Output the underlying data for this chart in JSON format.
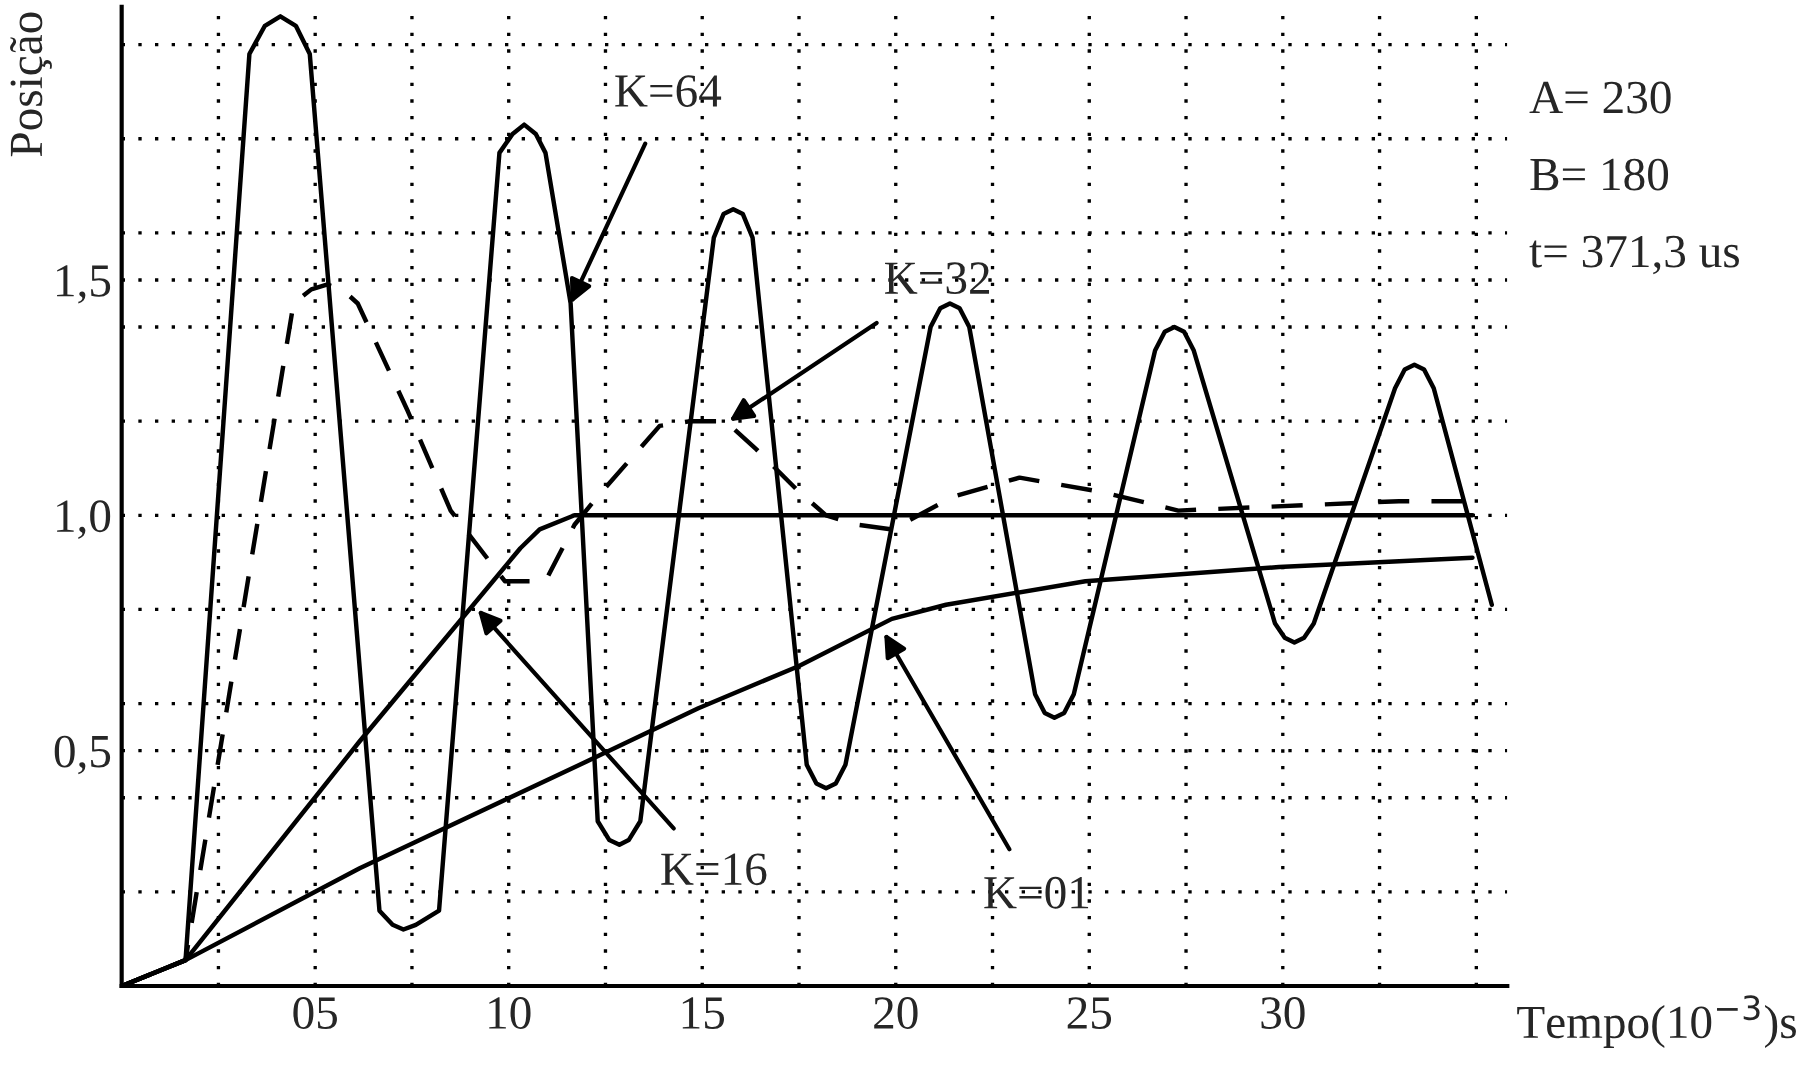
{
  "chart_data": {
    "type": "line",
    "xlabel": "Tempo(10$^{−3}$)s",
    "ylabel": "Posição",
    "xlim": [
      0,
      35.8
    ],
    "ylim": [
      0,
      2.08
    ],
    "xticks": [
      {
        "value": 2.5,
        "label": null
      },
      {
        "value": 5,
        "label": "05"
      },
      {
        "value": 7.5,
        "label": null
      },
      10,
      {
        "value": 12.5,
        "label": null
      },
      15,
      {
        "value": 17.5,
        "label": null
      },
      20,
      {
        "value": 22.5,
        "label": null
      },
      25,
      {
        "value": 27.5,
        "label": null
      },
      30,
      {
        "value": 32.5,
        "label": null
      },
      {
        "value": 35,
        "label": null
      }
    ],
    "yticks": [
      {
        "value": 0.2,
        "label": null
      },
      {
        "value": 0.4,
        "label": null
      },
      {
        "value": 0.5,
        "label": "0,5"
      },
      {
        "value": 0.6,
        "label": null
      },
      {
        "value": 0.8,
        "label": null
      },
      {
        "value": 1.0,
        "label": "1,0"
      },
      {
        "value": 1.2,
        "label": null
      },
      {
        "value": 1.4,
        "label": null
      },
      {
        "value": 1.5,
        "label": "1,5"
      },
      {
        "value": 1.6,
        "label": null
      },
      {
        "value": 1.8,
        "label": null
      },
      {
        "value": 2.0,
        "label": null
      }
    ],
    "grid": true,
    "series": [
      {
        "color": "#000000",
        "line_style": "solid",
        "x": [
          0,
          1.65,
          3.3,
          3.7,
          4.1,
          4.5,
          4.86,
          6.66,
          7.0,
          7.28,
          7.6,
          8.2,
          9.76,
          10.1,
          10.4,
          10.7,
          10.95,
          11.6,
          12.3,
          12.6,
          12.86,
          13.1,
          13.4,
          15.3,
          15.55,
          15.8,
          16.05,
          16.3,
          17.7,
          17.95,
          18.2,
          18.45,
          18.7,
          20.9,
          21.15,
          21.4,
          21.65,
          21.9,
          23.6,
          23.85,
          24.1,
          24.35,
          24.6,
          26.7,
          26.95,
          27.2,
          27.45,
          27.7,
          29.8,
          30.05,
          30.3,
          30.55,
          30.8,
          32.9,
          33.15,
          33.4,
          33.65,
          33.9,
          35.4
        ],
        "values": [
          0,
          0.055,
          1.98,
          2.04,
          2.06,
          2.04,
          1.98,
          0.16,
          0.13,
          0.12,
          0.13,
          0.16,
          1.77,
          1.81,
          1.83,
          1.81,
          1.77,
          1.45,
          0.35,
          0.31,
          0.3,
          0.31,
          0.35,
          1.59,
          1.64,
          1.65,
          1.64,
          1.59,
          0.47,
          0.43,
          0.42,
          0.43,
          0.47,
          1.4,
          1.44,
          1.45,
          1.44,
          1.4,
          0.62,
          0.58,
          0.57,
          0.58,
          0.62,
          1.35,
          1.39,
          1.4,
          1.39,
          1.35,
          0.77,
          0.74,
          0.73,
          0.74,
          0.77,
          1.27,
          1.31,
          1.32,
          1.31,
          1.27,
          0.81
        ]
      },
      {
        "color": "#000000",
        "line_style": "dashed",
        "x": [
          0,
          1.65,
          4.44,
          4.9,
          5.3,
          5.7,
          6.1,
          7.4,
          8.5,
          9.9,
          10.95,
          11.7,
          12.3,
          13.9,
          14.7,
          15.6,
          16.4,
          17.5,
          18.2,
          19.0,
          19.9,
          21.5,
          23.2,
          25.3,
          27.3,
          33.0,
          34.9
        ],
        "values": [
          0,
          0.055,
          1.45,
          1.48,
          1.49,
          1.48,
          1.45,
          1.22,
          1.01,
          0.86,
          0.86,
          0.98,
          1.04,
          1.19,
          1.2,
          1.2,
          1.14,
          1.05,
          1.0,
          0.98,
          0.97,
          1.04,
          1.08,
          1.05,
          1.01,
          1.03,
          1.03
        ]
      },
      {
        "color": "#000000",
        "line_style": "solid",
        "x": [
          0,
          1.65,
          6.15,
          10.3,
          10.8,
          11.7,
          34.9
        ],
        "values": [
          0,
          0.055,
          0.52,
          0.93,
          0.97,
          1.0,
          1.0
        ]
      },
      {
        "color": "#000000",
        "line_style": "solid",
        "x": [
          0,
          1.65,
          6.15,
          12.35,
          14.9,
          17.5,
          19.9,
          21.3,
          24.9,
          29.9,
          34.9
        ],
        "values": [
          0,
          0.055,
          0.25,
          0.49,
          0.59,
          0.68,
          0.78,
          0.81,
          0.86,
          0.89,
          0.91
        ]
      }
    ],
    "annotations": [
      {
        "text": "K=64",
        "x": 11.6,
        "y": 1.45
      },
      {
        "text": "K=32",
        "x": 15.7,
        "y": 1.2
      },
      {
        "text": "K=16",
        "x": 9.2,
        "y": 0.8
      },
      {
        "text": "K=01",
        "x": 19.7,
        "y": 0.75
      },
      "A= 230",
      "B= 180",
      "t= 371,3 us"
    ]
  }
}
